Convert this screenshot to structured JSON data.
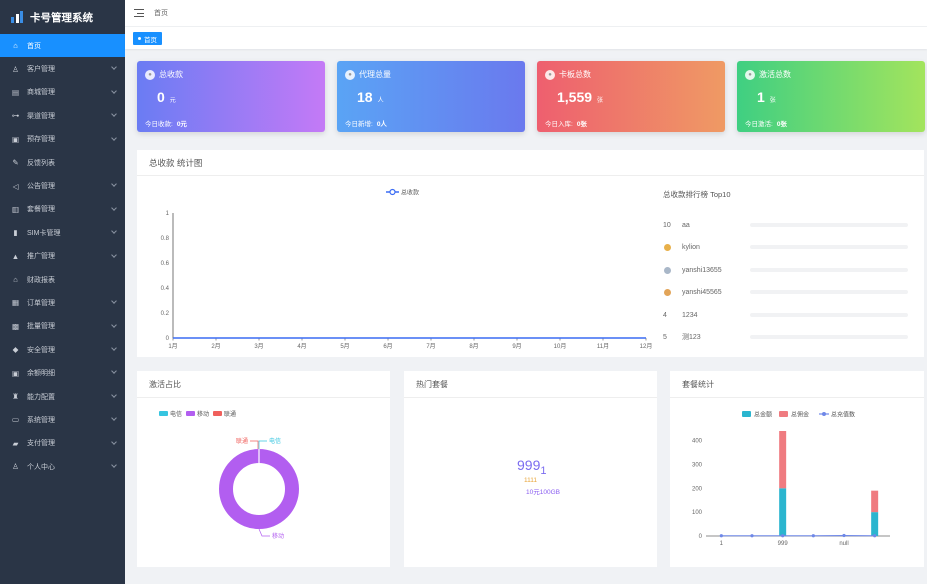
{
  "app": {
    "title": "卡号管理系统"
  },
  "sidebar": {
    "items": [
      {
        "label": "首页",
        "icon": "home-icon",
        "glyph": "⌂",
        "active": true,
        "expandable": false
      },
      {
        "label": "客户管理",
        "icon": "users-icon",
        "glyph": "♙",
        "expandable": true
      },
      {
        "label": "商城管理",
        "icon": "store-icon",
        "glyph": "▤",
        "expandable": true
      },
      {
        "label": "渠道管理",
        "icon": "sitemap-icon",
        "glyph": "⊶",
        "expandable": true
      },
      {
        "label": "预存管理",
        "icon": "deposit-icon",
        "glyph": "▣",
        "expandable": true
      },
      {
        "label": "反馈列表",
        "icon": "feedback-icon",
        "glyph": "✎",
        "expandable": false
      },
      {
        "label": "公告管理",
        "icon": "megaphone-icon",
        "glyph": "◁",
        "expandable": true
      },
      {
        "label": "套餐管理",
        "icon": "package-icon",
        "glyph": "▥",
        "expandable": true
      },
      {
        "label": "SIM卡管理",
        "icon": "sim-card-icon",
        "glyph": "▮",
        "expandable": true
      },
      {
        "label": "推广管理",
        "icon": "promotion-icon",
        "glyph": "▲",
        "expandable": true
      },
      {
        "label": "财政报表",
        "icon": "bank-icon",
        "glyph": "⌂",
        "expandable": false
      },
      {
        "label": "订单管理",
        "icon": "order-icon",
        "glyph": "▦",
        "expandable": true
      },
      {
        "label": "批量管理",
        "icon": "batch-icon",
        "glyph": "▩",
        "expandable": true
      },
      {
        "label": "安全管理",
        "icon": "shield-icon",
        "glyph": "◆",
        "expandable": true
      },
      {
        "label": "余额明细",
        "icon": "balance-icon",
        "glyph": "▣",
        "expandable": true
      },
      {
        "label": "能力配置",
        "icon": "trophy-icon",
        "glyph": "♜",
        "expandable": true
      },
      {
        "label": "系统管理",
        "icon": "system-icon",
        "glyph": "▭",
        "expandable": true
      },
      {
        "label": "支付管理",
        "icon": "payment-icon",
        "glyph": "▰",
        "expandable": true
      },
      {
        "label": "个人中心",
        "icon": "user-icon",
        "glyph": "♙",
        "expandable": true
      }
    ]
  },
  "header": {
    "breadcrumb": "首页"
  },
  "tags": {
    "active": "首页"
  },
  "cards": [
    {
      "title": "总收款",
      "icon": "yen-icon",
      "value": "0",
      "unit": "元",
      "foot_label": "今日收款:",
      "foot_value": "0元",
      "from": "#6a7cf3",
      "to": "#c47af6"
    },
    {
      "title": "代理总量",
      "icon": "agent-icon",
      "value": "18",
      "unit": "人",
      "foot_label": "今日新增:",
      "foot_value": "0人",
      "from": "#5aa4f5",
      "to": "#6a79ee"
    },
    {
      "title": "卡板总数",
      "icon": "card-icon",
      "value": "1,559",
      "unit": "张",
      "foot_label": "今日入库:",
      "foot_value": "0张",
      "from": "#ee5f6f",
      "to": "#ef9a64"
    },
    {
      "title": "激活总数",
      "icon": "activate-icon",
      "value": "1",
      "unit": "张",
      "foot_label": "今日激活:",
      "foot_value": "0张",
      "from": "#3fcf82",
      "to": "#a3e45d"
    }
  ],
  "revenue_panel": {
    "title": "总收款 统计图"
  },
  "rank": {
    "title": "总收款排行榜 Top10",
    "rows": [
      {
        "rank": "10",
        "name": "aa",
        "medal": ""
      },
      {
        "rank": "",
        "name": "kylion",
        "medal": "#e8b04a"
      },
      {
        "rank": "",
        "name": "yanshi13655",
        "medal": "#a9b7c8"
      },
      {
        "rank": "",
        "name": "yanshi45565",
        "medal": "#e2a458"
      },
      {
        "rank": "4",
        "name": "1234",
        "medal": ""
      },
      {
        "rank": "5",
        "name": "测123",
        "medal": ""
      }
    ]
  },
  "activation_panel": {
    "title": "激活占比"
  },
  "hot_panel": {
    "title": "热门套餐",
    "big": "999",
    "small": "1",
    "line1": "1111",
    "line2": "10元100GB"
  },
  "package_panel": {
    "title": "套餐统计"
  },
  "colors": {
    "primary": "#1890ff",
    "sidebar": "#2a3546"
  },
  "chart_data": [
    {
      "type": "line",
      "title": "",
      "legend": [
        "总收款"
      ],
      "legend_position": "top",
      "categories": [
        "1月",
        "2月",
        "3月",
        "4月",
        "5月",
        "6月",
        "7月",
        "8月",
        "9月",
        "10月",
        "11月",
        "12月"
      ],
      "series": [
        {
          "name": "总收款",
          "color": "#3a6cf4",
          "values": [
            0,
            0,
            0,
            0,
            0,
            0,
            0,
            0,
            0,
            0,
            0,
            0
          ]
        }
      ],
      "yticks": [
        "0",
        "0.2",
        "0.4",
        "0.6",
        "0.8",
        "1"
      ],
      "ylim": [
        0,
        1
      ]
    },
    {
      "type": "pie",
      "title": "",
      "legend": [
        "电信",
        "移动",
        "联通"
      ],
      "legend_position": "top-left",
      "slices": [
        {
          "name": "电信",
          "value": 0,
          "color": "#36c5e0"
        },
        {
          "name": "移动",
          "value": 1,
          "color": "#b25ef0"
        },
        {
          "name": "联通",
          "value": 0,
          "color": "#f0605c"
        }
      ]
    },
    {
      "type": "bar",
      "title": "",
      "legend": [
        "总金额",
        "总佣金",
        "总充值数"
      ],
      "legend_position": "top",
      "categories": [
        "1",
        "",
        "999",
        "",
        "null",
        ""
      ],
      "series": [
        {
          "name": "总金额",
          "color": "#2bb5cf",
          "values": [
            0,
            0,
            200,
            0,
            0,
            100
          ]
        },
        {
          "name": "总佣金",
          "color": "#ef7b80",
          "values": [
            0,
            0,
            240,
            0,
            0,
            90
          ]
        },
        {
          "name": "总充值数",
          "color": "#6f88e8",
          "values": [
            1,
            1,
            1,
            1,
            2,
            1
          ]
        }
      ],
      "yticks": [
        "0",
        "100",
        "200",
        "300",
        "400"
      ],
      "ylim": [
        0,
        440
      ]
    }
  ]
}
